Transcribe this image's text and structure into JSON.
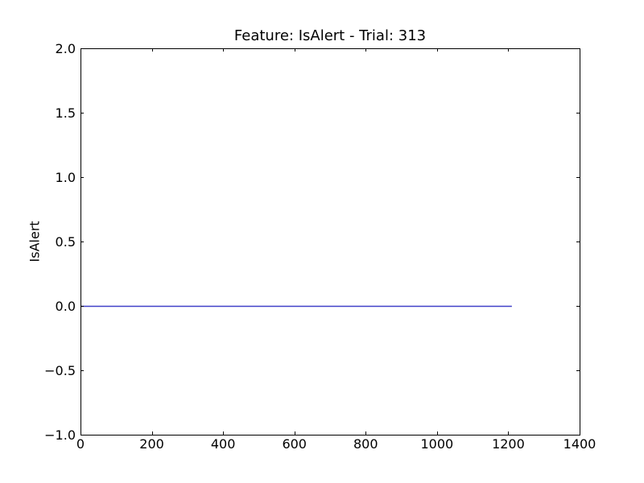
{
  "chart_data": {
    "type": "line",
    "title": "Feature: IsAlert - Trial: 313",
    "xlabel": "",
    "ylabel": "IsAlert",
    "xlim": [
      0,
      1400
    ],
    "ylim": [
      -1.0,
      2.0
    ],
    "x_ticks": [
      0,
      200,
      400,
      600,
      800,
      1000,
      1200,
      1400
    ],
    "x_tick_labels": [
      "0",
      "200",
      "400",
      "600",
      "800",
      "1000",
      "1200",
      "1400"
    ],
    "y_ticks": [
      -1.0,
      -0.5,
      0.0,
      0.5,
      1.0,
      1.5,
      2.0
    ],
    "y_tick_labels": [
      "−1.0",
      "−0.5",
      "0.0",
      "0.5",
      "1.0",
      "1.5",
      "2.0"
    ],
    "grid": false,
    "series": [
      {
        "color": "#4040c8",
        "x": [
          0,
          1210
        ],
        "y": [
          0,
          0
        ]
      }
    ]
  }
}
